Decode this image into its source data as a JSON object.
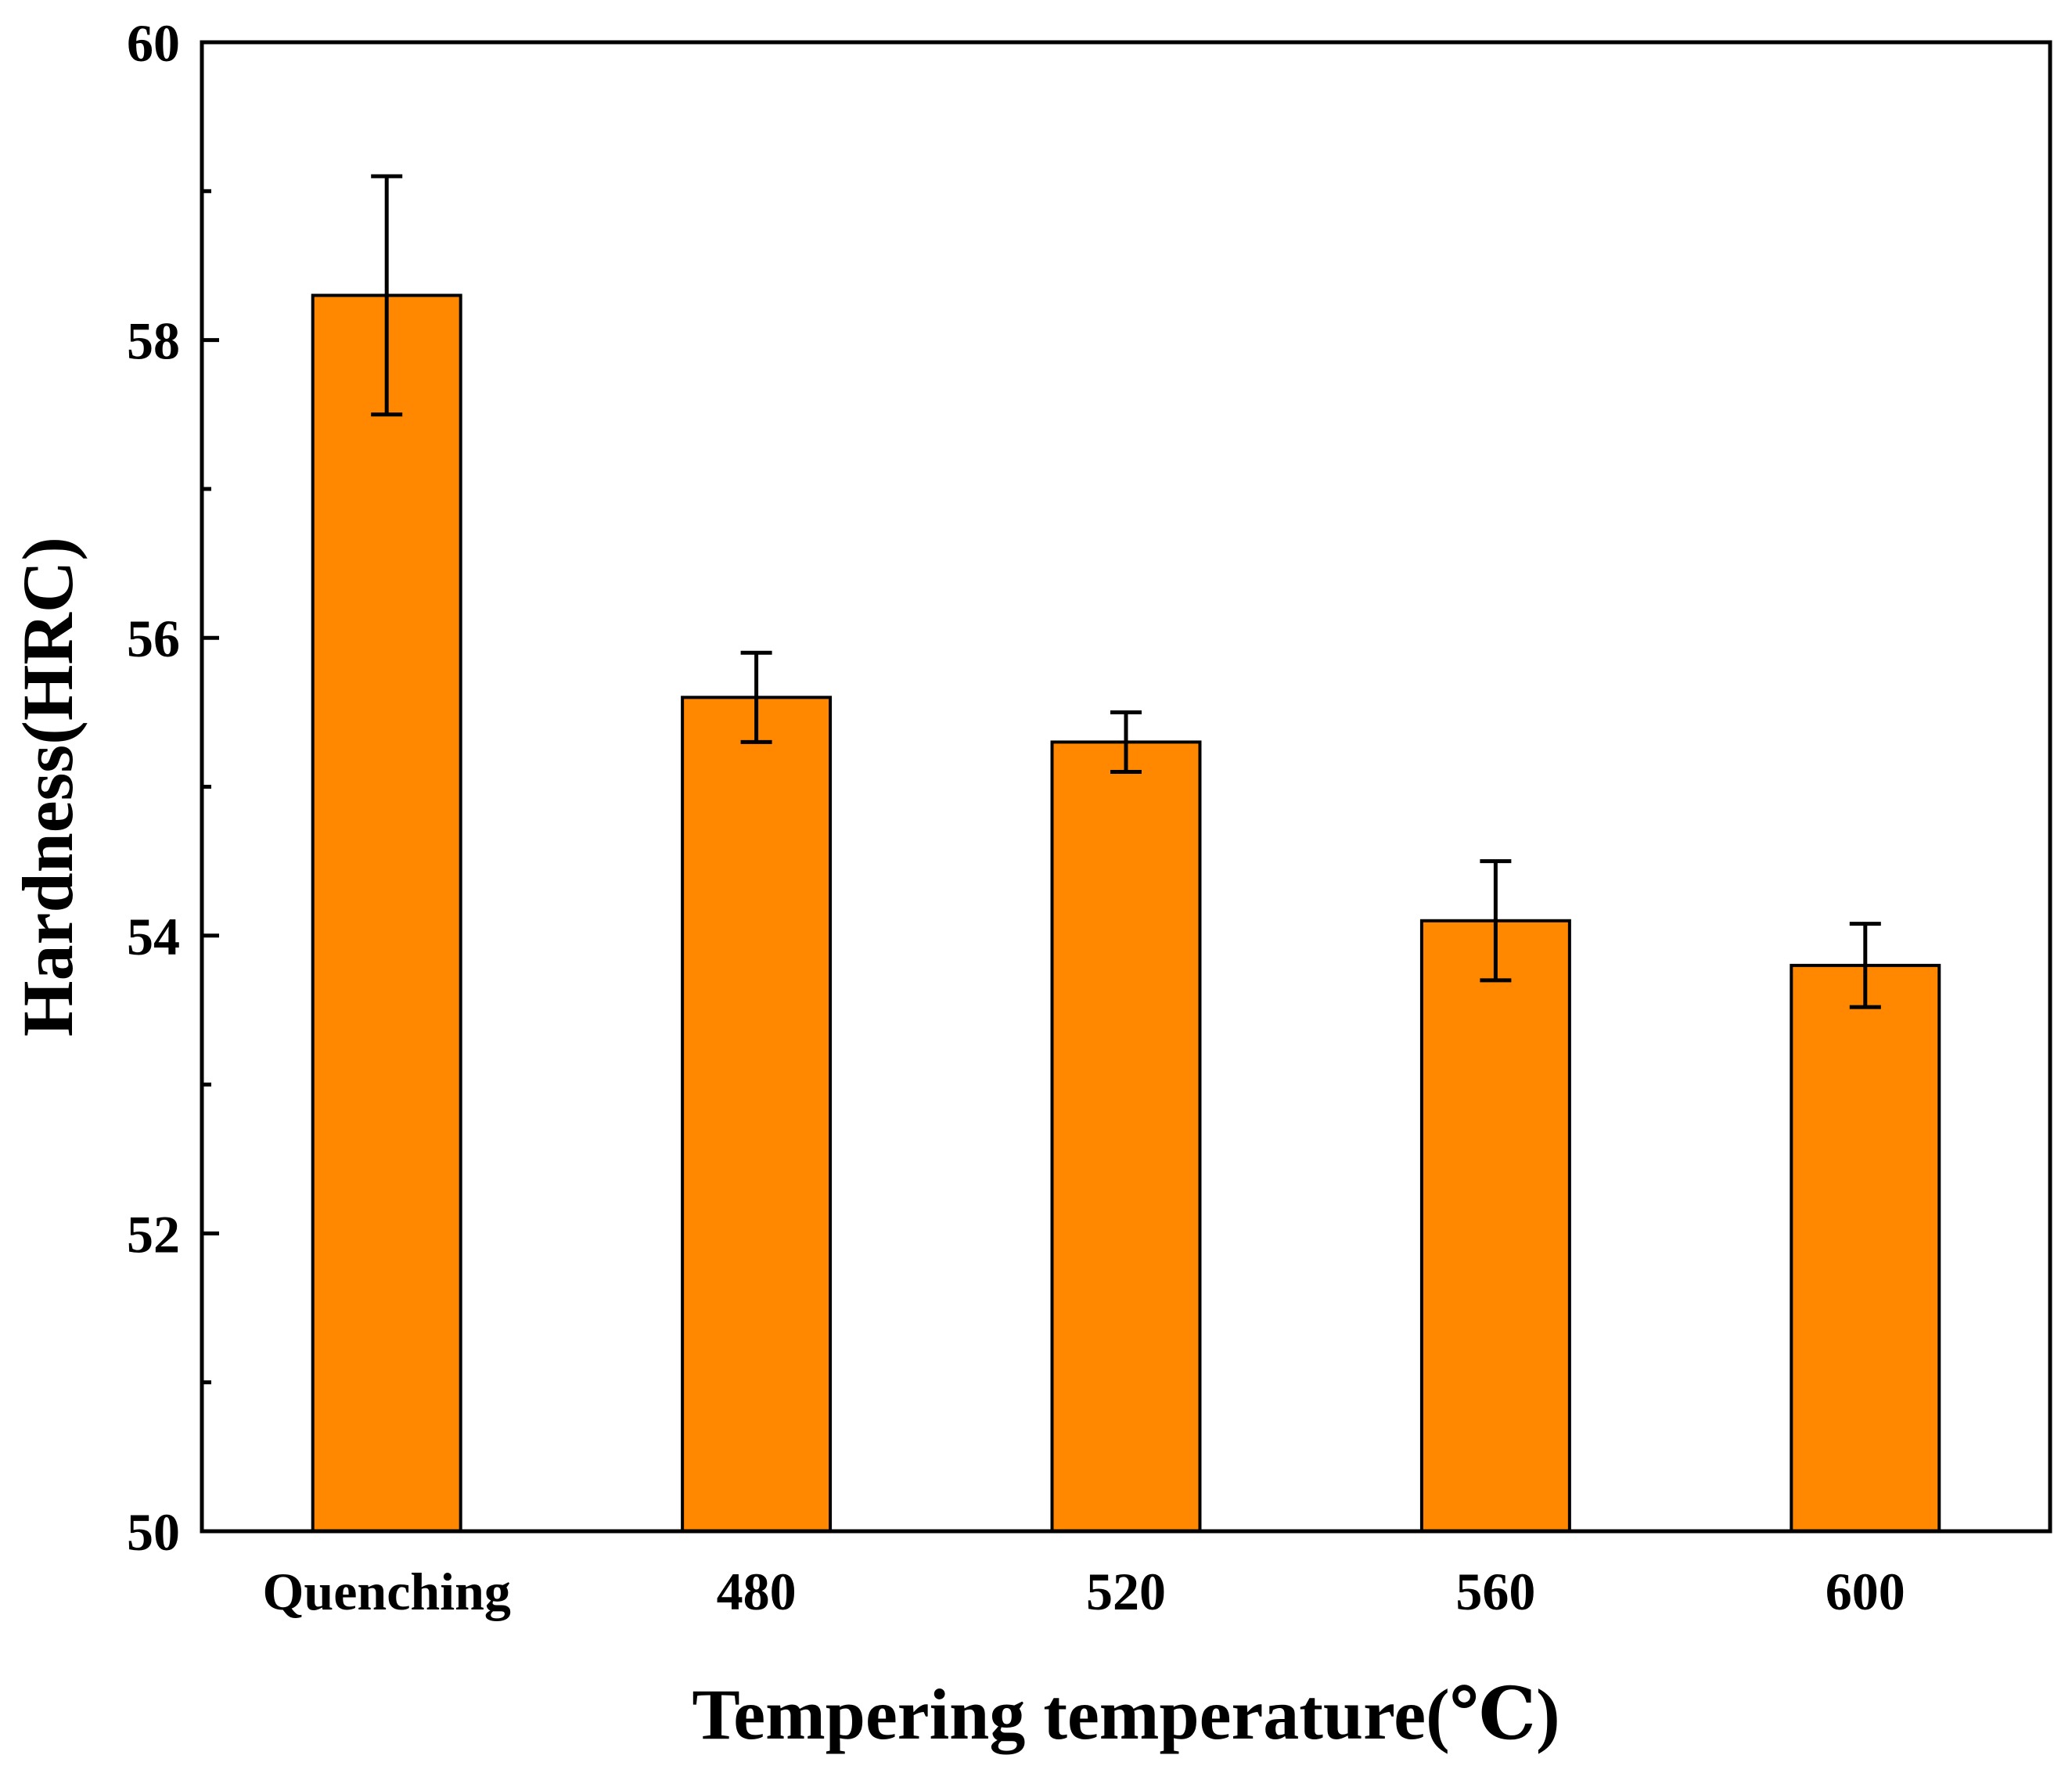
{
  "chart_data": {
    "type": "bar",
    "title": "",
    "xlabel": "Tempering temperature(℃)",
    "ylabel": "Hardness(HRC)",
    "categories": [
      "Quenching",
      "480",
      "520",
      "560",
      "600"
    ],
    "values": [
      58.3,
      55.6,
      55.3,
      54.1,
      53.8
    ],
    "error_low": [
      57.5,
      55.3,
      55.1,
      53.7,
      53.52
    ],
    "error_high": [
      59.1,
      55.9,
      55.5,
      54.5,
      54.08
    ],
    "ylim": [
      50,
      60
    ],
    "y_major_ticks": [
      50,
      52,
      54,
      56,
      58,
      60
    ],
    "y_minor_ticks": [
      51,
      53,
      55,
      57,
      59
    ],
    "grid": false,
    "legend": "none"
  },
  "colors": {
    "bar_fill": "#FF8800",
    "bar_edge": "#000000",
    "axis": "#000000",
    "background": "#FFFFFF"
  }
}
